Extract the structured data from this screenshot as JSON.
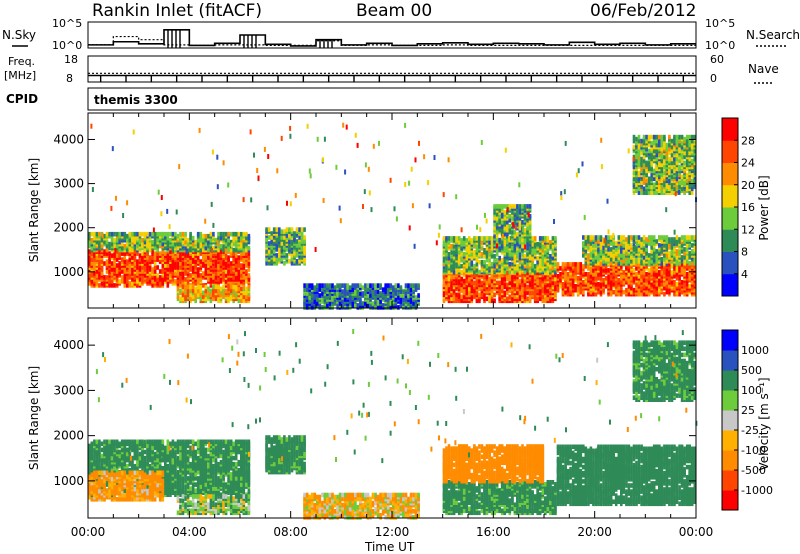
{
  "header": {
    "title": "Rankin Inlet (fitACF)",
    "beam": "Beam 00",
    "date": "06/Feb/2012"
  },
  "noise_panel": {
    "left_label": "N.Sky",
    "right_label": "N.Search",
    "left_ticks": [
      "10^5",
      "10^0"
    ],
    "right_ticks": [
      "10^5",
      "10^0"
    ]
  },
  "freq_panel": {
    "left_label_1": "Freq.",
    "left_label_2": "[MHz]",
    "right_label": "Nave",
    "left_ticks": [
      "18",
      "8"
    ],
    "right_ticks": [
      "60",
      "0"
    ]
  },
  "cpid_panel": {
    "label": "CPID",
    "value": "themis 3300"
  },
  "axes": {
    "y_label": "Slant Range [km]",
    "y_ticks": [
      "1000",
      "2000",
      "3000",
      "4000"
    ],
    "x_label": "Time UT",
    "x_ticks": [
      "00:00",
      "04:00",
      "08:00",
      "12:00",
      "16:00",
      "20:00",
      "00:00"
    ]
  },
  "colors": {
    "power": [
      "#0000ff",
      "#2a52be",
      "#2e8b57",
      "#6ccc3c",
      "#f5d000",
      "#ff8c00",
      "#ff4500",
      "#ff0000"
    ],
    "velocity": [
      "#ff0000",
      "#ff4500",
      "#ff8c00",
      "#ffb000",
      "#c8c8c8",
      "#6ccc3c",
      "#2e8b57",
      "#2a52be",
      "#0000ff"
    ]
  },
  "colorbars": {
    "power": {
      "label": "Power [dB]",
      "ticks": [
        "4",
        "8",
        "12",
        "16",
        "20",
        "24",
        "28"
      ]
    },
    "velocity": {
      "label": "Velocity [m s⁻¹]",
      "ticks": [
        "-1000",
        "-500",
        "-100",
        "-25",
        "25",
        "100",
        "500",
        "1000"
      ]
    }
  },
  "chart_data": {
    "type": "heatmap",
    "x_unit": "hours UT",
    "y_unit": "km",
    "xlim": [
      0,
      24
    ],
    "ylim": [
      180,
      4600
    ],
    "power_regions": [
      {
        "t": [
          0.0,
          6.3
        ],
        "r": [
          700,
          1500
        ],
        "v": 26
      },
      {
        "t": [
          0.0,
          6.3
        ],
        "r": [
          1500,
          1900
        ],
        "v": 14
      },
      {
        "t": [
          3.5,
          6.3
        ],
        "r": [
          350,
          700
        ],
        "v": 20
      },
      {
        "t": [
          7.0,
          8.5
        ],
        "r": [
          1200,
          2000
        ],
        "v": 12
      },
      {
        "t": [
          8.5,
          13.0
        ],
        "r": [
          200,
          700
        ],
        "v": 8
      },
      {
        "t": [
          14.0,
          18.5
        ],
        "r": [
          350,
          1000
        ],
        "v": 26
      },
      {
        "t": [
          14.0,
          18.5
        ],
        "r": [
          1000,
          1800
        ],
        "v": 14
      },
      {
        "t": [
          16.0,
          17.5
        ],
        "r": [
          1500,
          2500
        ],
        "v": 12
      },
      {
        "t": [
          18.5,
          24.0
        ],
        "r": [
          500,
          1200
        ],
        "v": 26
      },
      {
        "t": [
          19.5,
          24.0
        ],
        "r": [
          1200,
          1800
        ],
        "v": 14
      },
      {
        "t": [
          21.5,
          24.0
        ],
        "r": [
          2800,
          4100
        ],
        "v": 14
      }
    ],
    "velocity_regions": [
      {
        "t": [
          0.0,
          6.3
        ],
        "r": [
          700,
          1900
        ],
        "v": 200
      },
      {
        "t": [
          0.0,
          3.0
        ],
        "r": [
          600,
          1200
        ],
        "v": -150
      },
      {
        "t": [
          3.5,
          6.3
        ],
        "r": [
          300,
          700
        ],
        "v": 60
      },
      {
        "t": [
          7.0,
          8.5
        ],
        "r": [
          1200,
          2000
        ],
        "v": 200
      },
      {
        "t": [
          8.5,
          13.0
        ],
        "r": [
          200,
          700
        ],
        "v": -60
      },
      {
        "t": [
          14.0,
          18.5
        ],
        "r": [
          300,
          1000
        ],
        "v": 200
      },
      {
        "t": [
          14.0,
          18.0
        ],
        "r": [
          1000,
          1800
        ],
        "v": -300
      },
      {
        "t": [
          18.5,
          24.0
        ],
        "r": [
          500,
          1800
        ],
        "v": 250
      },
      {
        "t": [
          21.5,
          24.0
        ],
        "r": [
          2800,
          4100
        ],
        "v": 200
      }
    ],
    "noise_sky_log10": [
      0.6,
      1.2,
      0.8,
      3.5,
      0.5,
      0.9,
      2.5,
      0.7,
      0.4,
      1.6,
      0.6,
      0.9,
      0.5,
      0.8,
      1.0,
      0.7,
      0.9,
      0.8,
      0.6,
      1.1,
      0.7,
      0.9,
      0.6,
      0.8
    ],
    "noise_search_log10": [
      0.6,
      2.2,
      1.6,
      0.6,
      0.5,
      0.6,
      0.6,
      0.5,
      0.5,
      1.4,
      0.5,
      0.6,
      0.5,
      0.5,
      0.6,
      0.5,
      0.5,
      0.5,
      0.5,
      0.5,
      0.5,
      0.5,
      0.5,
      0.5
    ],
    "frequency_mhz": 10.5,
    "nave": 20
  }
}
